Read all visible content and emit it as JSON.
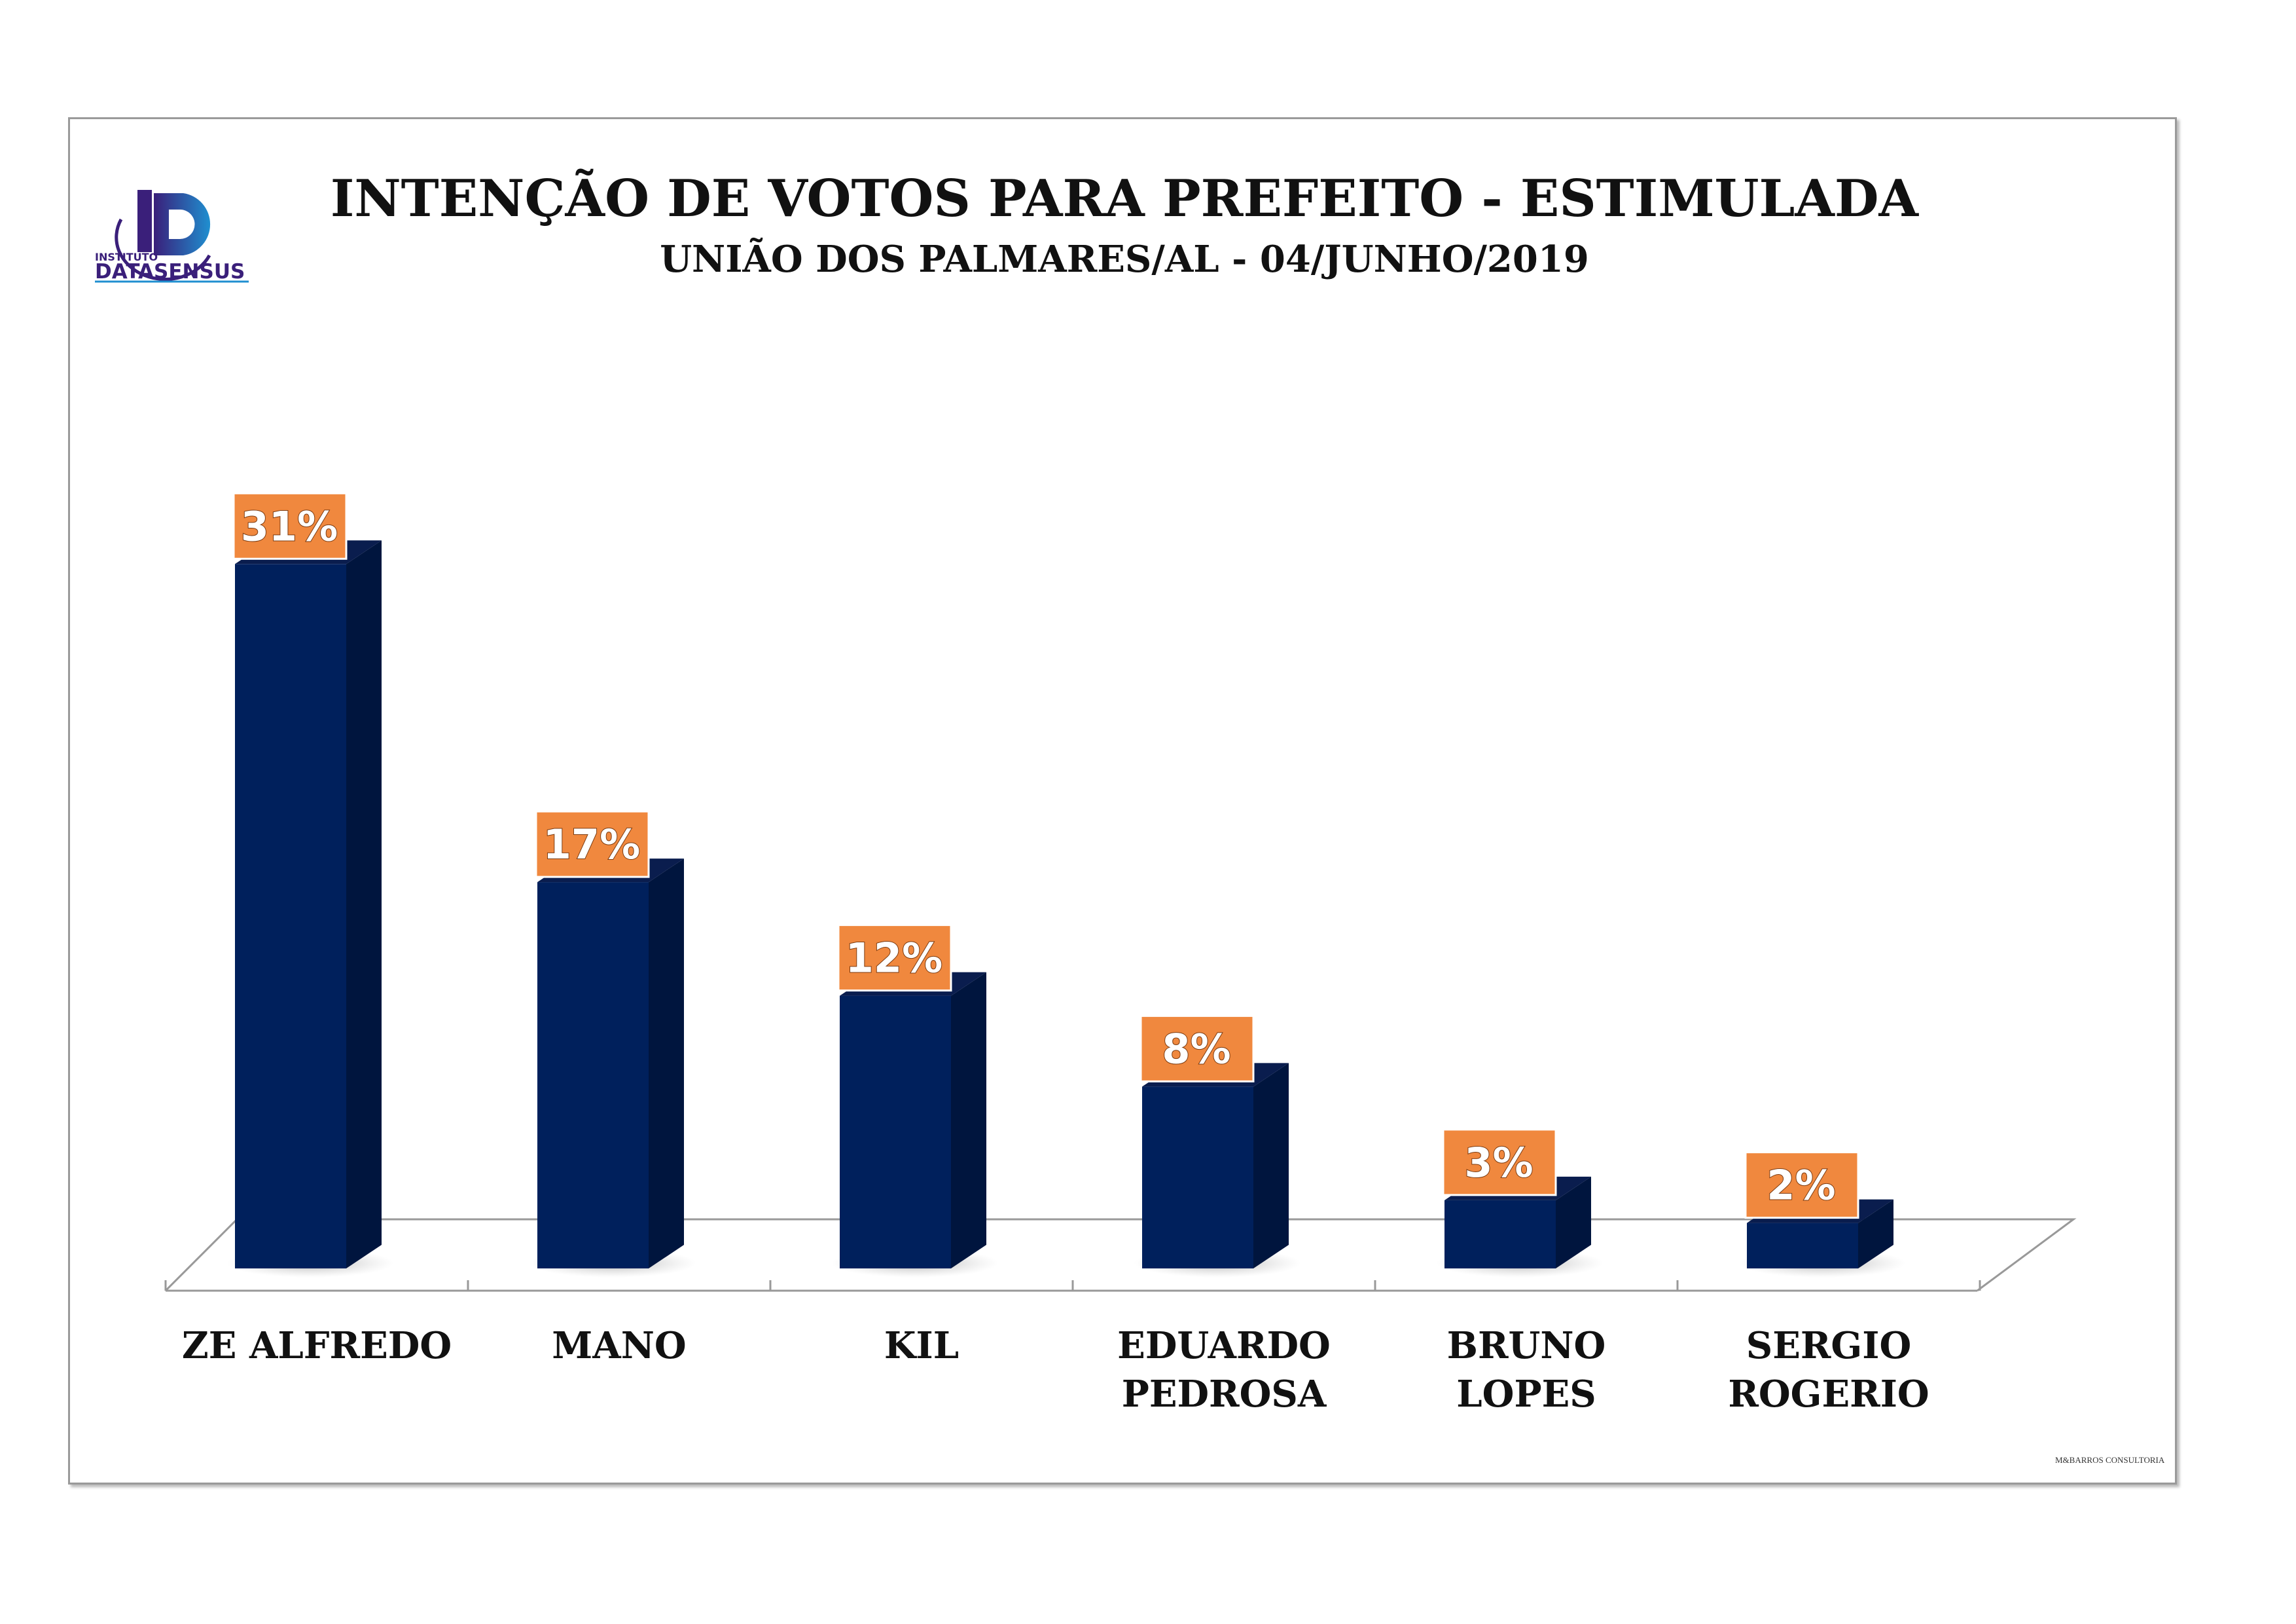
{
  "logo": {
    "line1": "INSTITUTO",
    "line2": "DATASENSUS"
  },
  "watermark": "M&BARROS CONSULTORIA",
  "colors": {
    "bar_front": "#00205C",
    "bar_side": "#00153E",
    "label_bg": "#F0883E",
    "label_text": "#FFFFFF"
  },
  "chart_data": {
    "type": "bar",
    "style": "3d",
    "title": "INTENÇÃO DE VOTOS PARA PREFEITO - ESTIMULADA",
    "subtitle": "UNIÃO DOS PALMARES/AL - 04/JUNHO/2019",
    "categories": [
      [
        "ZE ALFREDO"
      ],
      [
        "MANO"
      ],
      [
        "KIL"
      ],
      [
        "EDUARDO",
        "PEDROSA"
      ],
      [
        "BRUNO",
        "LOPES"
      ],
      [
        "SERGIO",
        "ROGERIO"
      ]
    ],
    "values": [
      31,
      17,
      12,
      8,
      3,
      2
    ],
    "data_labels": [
      "31%",
      "17%",
      "12%",
      "8%",
      "3%",
      "2%"
    ],
    "unit": "%",
    "grid": false,
    "legend": "none"
  }
}
